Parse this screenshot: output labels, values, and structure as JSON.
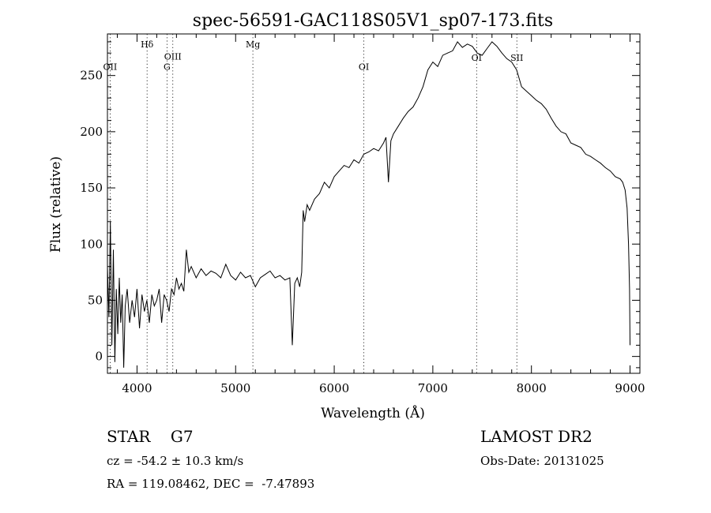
{
  "chart_data": {
    "type": "line",
    "title": "spec-56591-GAC118S05V1_sp07-173.fits",
    "xlabel": "Wavelength (Å)",
    "ylabel": "Flux (relative)",
    "xlim": [
      3700,
      9100
    ],
    "ylim": [
      -15,
      287
    ],
    "xticks": [
      4000,
      5000,
      6000,
      7000,
      8000,
      9000
    ],
    "yticks": [
      0,
      50,
      100,
      150,
      200,
      250
    ],
    "grid": false,
    "line_color": "#000000",
    "lines": [
      {
        "label": "OII",
        "x": 3727,
        "label_y": 255
      },
      {
        "label": "Hδ",
        "x": 4102,
        "label_y": 275
      },
      {
        "label": "G",
        "x": 4304,
        "label_y": 255
      },
      {
        "label": "OIII",
        "x": 4363,
        "label_y": 264
      },
      {
        "label": "Mg",
        "x": 5175,
        "label_y": 275
      },
      {
        "label": "OI",
        "x": 6300,
        "label_y": 255
      },
      {
        "label": "OI",
        "x": 7444,
        "label_y": 263
      },
      {
        "label": "SII",
        "x": 7852,
        "label_y": 263
      }
    ],
    "series": [
      {
        "x": [
          3700,
          3715,
          3730,
          3745,
          3760,
          3775,
          3790,
          3805,
          3820,
          3835,
          3850,
          3865,
          3880,
          3900,
          3925,
          3950,
          3975,
          4000,
          4025,
          4050,
          4075,
          4100,
          4125,
          4150,
          4175,
          4200,
          4225,
          4250,
          4275,
          4300,
          4325,
          4350,
          4375,
          4400,
          4425,
          4450,
          4475,
          4500,
          4525,
          4550,
          4600,
          4650,
          4700,
          4750,
          4800,
          4850,
          4900,
          4950,
          5000,
          5050,
          5100,
          5150,
          5200,
          5250,
          5300,
          5350,
          5400,
          5450,
          5500,
          5550,
          5575,
          5600,
          5625,
          5650,
          5670,
          5685,
          5700,
          5725,
          5750,
          5800,
          5850,
          5900,
          5950,
          6000,
          6050,
          6100,
          6150,
          6200,
          6250,
          6300,
          6350,
          6400,
          6450,
          6500,
          6525,
          6550,
          6575,
          6600,
          6650,
          6700,
          6750,
          6800,
          6850,
          6900,
          6950,
          7000,
          7050,
          7100,
          7150,
          7200,
          7250,
          7300,
          7350,
          7400,
          7450,
          7500,
          7550,
          7600,
          7650,
          7700,
          7750,
          7800,
          7850,
          7900,
          7950,
          8000,
          8050,
          8100,
          8150,
          8200,
          8250,
          8300,
          8350,
          8400,
          8450,
          8500,
          8550,
          8600,
          8650,
          8700,
          8750,
          8800,
          8850,
          8900,
          8925,
          8950,
          8970,
          8985,
          8995,
          9000
        ],
        "y": [
          80,
          35,
          120,
          10,
          95,
          -5,
          60,
          20,
          70,
          30,
          55,
          -10,
          45,
          60,
          30,
          50,
          35,
          60,
          25,
          55,
          40,
          50,
          30,
          55,
          45,
          50,
          60,
          30,
          55,
          50,
          40,
          60,
          55,
          70,
          60,
          65,
          58,
          95,
          75,
          80,
          70,
          78,
          72,
          76,
          74,
          70,
          82,
          72,
          68,
          75,
          70,
          72,
          62,
          70,
          73,
          76,
          70,
          72,
          68,
          70,
          10,
          65,
          70,
          62,
          75,
          130,
          120,
          135,
          130,
          140,
          145,
          155,
          150,
          160,
          165,
          170,
          168,
          175,
          172,
          180,
          182,
          185,
          183,
          190,
          195,
          155,
          192,
          198,
          205,
          212,
          218,
          222,
          230,
          240,
          255,
          262,
          258,
          268,
          270,
          272,
          280,
          275,
          278,
          276,
          270,
          268,
          274,
          280,
          276,
          270,
          265,
          262,
          255,
          240,
          236,
          232,
          228,
          225,
          220,
          212,
          205,
          200,
          198,
          190,
          188,
          186,
          180,
          178,
          175,
          172,
          168,
          165,
          160,
          158,
          155,
          148,
          132,
          100,
          60,
          10
        ]
      }
    ]
  },
  "info": {
    "object": "STAR    G7",
    "survey": "LAMOST DR2",
    "cz": "cz = -54.2 ± 10.3 km/s",
    "obs_date": "Obs-Date: 20131025",
    "radec": "RA = 119.08462, DEC =  -7.47893"
  }
}
